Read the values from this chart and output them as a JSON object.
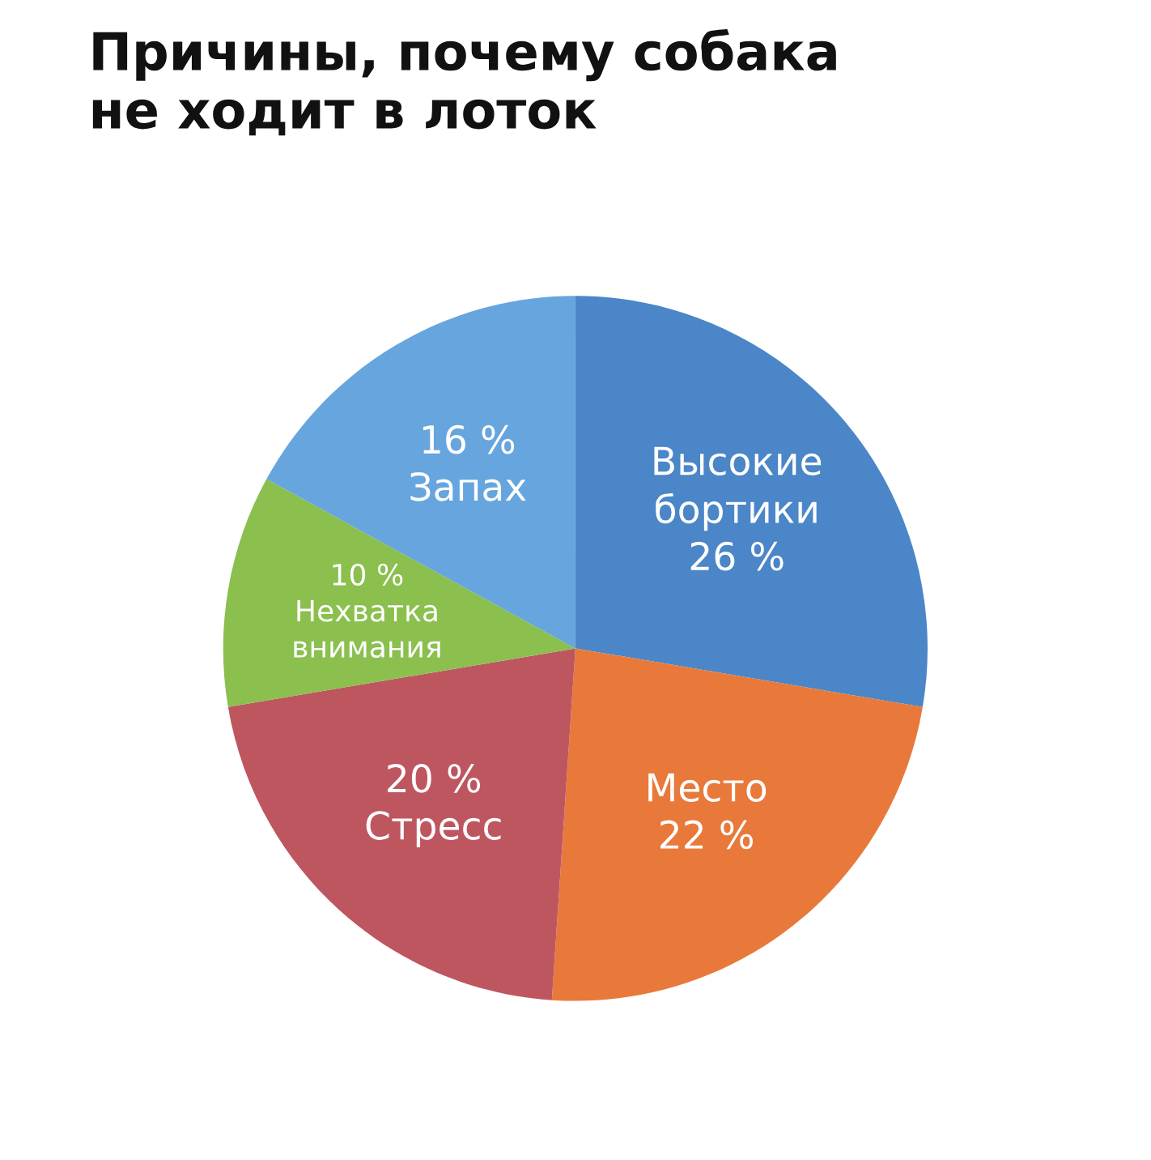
{
  "chart_data": {
    "type": "pie",
    "title": "Причины, почему собака\nне ходит в лоток",
    "categories": [
      "Высокие\nбортики",
      "Место",
      "Стресс",
      "Нехватка\nвнимания",
      "Запах"
    ],
    "values": [
      26,
      22,
      20,
      10,
      16
    ],
    "value_labels": [
      "26 %",
      "22 %",
      "20 %",
      "10 %",
      "16 %"
    ],
    "colors": [
      "#4a86c8",
      "#e8793a",
      "#be5660",
      "#8bbf4e",
      "#66a5de"
    ],
    "legend": false
  }
}
